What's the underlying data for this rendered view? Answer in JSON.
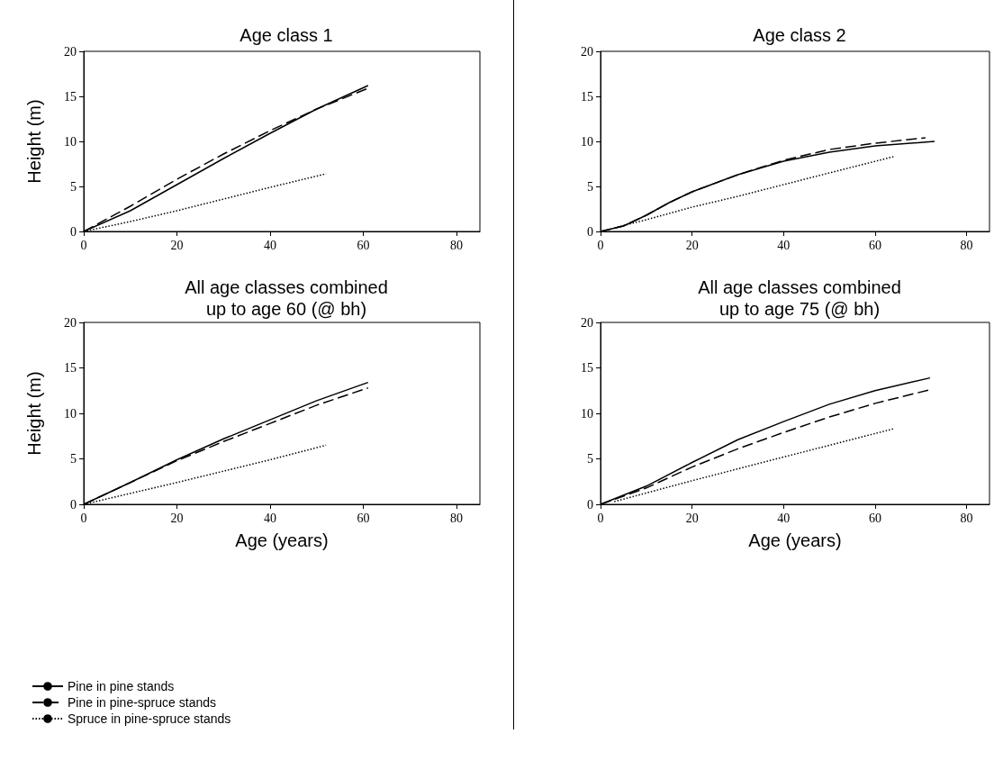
{
  "chart_data": [
    {
      "type": "line",
      "title": "Age class 1",
      "ylabel": "Height (m)",
      "xlim": [
        0,
        85
      ],
      "xticks": [
        0,
        20,
        40,
        60,
        80
      ],
      "ylim": [
        0,
        20
      ],
      "yticks": [
        0,
        5,
        10,
        15,
        20
      ],
      "grid": false,
      "legend": false,
      "marker": "none",
      "series": [
        {
          "color": "#000000",
          "line_style": "solid",
          "x": [
            0,
            10,
            20,
            30,
            40,
            50,
            61
          ],
          "values": [
            0,
            2.3,
            5.2,
            8.1,
            10.9,
            13.6,
            16.2
          ]
        },
        {
          "color": "#000000",
          "line_style": "dashed",
          "x": [
            0,
            10,
            20,
            30,
            40,
            50,
            61
          ],
          "values": [
            0,
            2.8,
            5.8,
            8.6,
            11.2,
            13.6,
            15.9
          ]
        },
        {
          "color": "#000000",
          "line_style": "dotted",
          "x": [
            0,
            10,
            20,
            30,
            40,
            52
          ],
          "values": [
            0,
            1.1,
            2.3,
            3.6,
            4.9,
            6.4
          ]
        }
      ]
    },
    {
      "type": "line",
      "title": "Age class 2",
      "xlim": [
        0,
        85
      ],
      "xticks": [
        0,
        20,
        40,
        60,
        80
      ],
      "ylim": [
        0,
        20
      ],
      "yticks": [
        0,
        5,
        10,
        15,
        20
      ],
      "grid": false,
      "legend": false,
      "marker": "none",
      "series": [
        {
          "color": "#000000",
          "line_style": "solid",
          "x": [
            0,
            5,
            10,
            15,
            20,
            30,
            40,
            50,
            60,
            73
          ],
          "values": [
            0,
            0.6,
            1.8,
            3.2,
            4.4,
            6.3,
            7.8,
            8.8,
            9.5,
            10.0
          ]
        },
        {
          "color": "#000000",
          "line_style": "dashed",
          "x": [
            0,
            5,
            10,
            15,
            20,
            30,
            40,
            50,
            60,
            71
          ],
          "values": [
            0,
            0.6,
            1.8,
            3.2,
            4.4,
            6.3,
            7.9,
            9.1,
            9.8,
            10.4
          ]
        },
        {
          "color": "#000000",
          "line_style": "dotted",
          "x": [
            3,
            10,
            20,
            30,
            40,
            50,
            64
          ],
          "values": [
            0.4,
            1.3,
            2.7,
            3.9,
            5.2,
            6.5,
            8.3
          ]
        }
      ]
    },
    {
      "type": "line",
      "title": "All age classes combined\nup to age 60 (@ bh)",
      "xlabel": "Age (years)",
      "ylabel": "Height (m)",
      "xlim": [
        0,
        85
      ],
      "xticks": [
        0,
        20,
        40,
        60,
        80
      ],
      "ylim": [
        0,
        20
      ],
      "yticks": [
        0,
        5,
        10,
        15,
        20
      ],
      "grid": false,
      "legend": "bottom left",
      "marker": "none",
      "series": [
        {
          "name": "Pine in pine stands",
          "color": "#000000",
          "line_style": "solid",
          "x": [
            0,
            10,
            20,
            30,
            40,
            50,
            61
          ],
          "values": [
            0,
            2.4,
            4.9,
            7.2,
            9.3,
            11.4,
            13.4
          ]
        },
        {
          "name": "Pine in pine-spruce stands",
          "color": "#000000",
          "line_style": "dashed",
          "x": [
            0,
            10,
            20,
            30,
            40,
            50,
            61
          ],
          "values": [
            0,
            2.4,
            4.8,
            6.9,
            8.9,
            10.9,
            12.8
          ]
        },
        {
          "name": "Spruce in pine-spruce stands",
          "color": "#000000",
          "line_style": "dotted",
          "x": [
            0,
            20,
            40,
            52
          ],
          "values": [
            0,
            2.4,
            4.9,
            6.5
          ]
        }
      ]
    },
    {
      "type": "line",
      "title": "All age classes combined\nup to age 75 (@ bh)",
      "xlabel": "Age (years)",
      "xlim": [
        0,
        85
      ],
      "xticks": [
        0,
        20,
        40,
        60,
        80
      ],
      "ylim": [
        0,
        20
      ],
      "yticks": [
        0,
        5,
        10,
        15,
        20
      ],
      "grid": false,
      "legend": false,
      "marker": "none",
      "series": [
        {
          "color": "#000000",
          "line_style": "solid",
          "x": [
            0,
            10,
            20,
            30,
            40,
            50,
            60,
            72
          ],
          "values": [
            0,
            2.0,
            4.6,
            7.1,
            9.1,
            11.0,
            12.5,
            13.9
          ]
        },
        {
          "color": "#000000",
          "line_style": "dashed",
          "x": [
            0,
            10,
            20,
            30,
            40,
            50,
            60,
            72
          ],
          "values": [
            0,
            1.8,
            4.1,
            6.1,
            7.9,
            9.6,
            11.1,
            12.6
          ]
        },
        {
          "color": "#000000",
          "line_style": "dotted",
          "x": [
            3,
            20,
            40,
            64
          ],
          "values": [
            0.3,
            2.6,
            5.2,
            8.3
          ]
        }
      ]
    }
  ]
}
